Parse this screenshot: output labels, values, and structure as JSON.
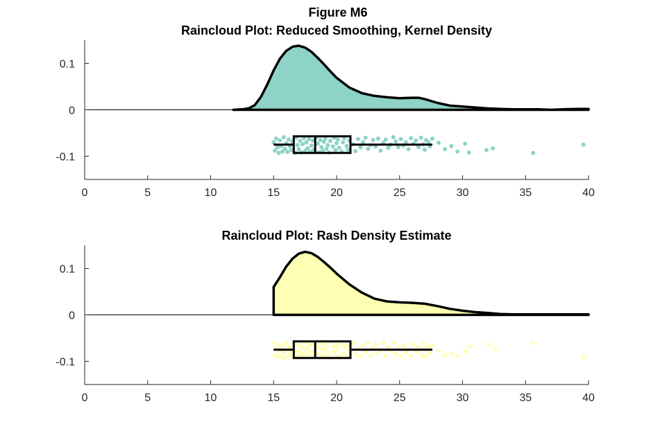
{
  "figure": {
    "title": "Figure M6"
  },
  "chart_data": [
    {
      "type": "raincloud",
      "title": "Raincloud Plot: Reduced Smoothing, Kernel Density",
      "xlim": [
        0,
        40
      ],
      "ylim": [
        -0.15,
        0.15
      ],
      "xticks": [
        "0",
        "5",
        "10",
        "15",
        "20",
        "25",
        "30",
        "35",
        "40"
      ],
      "yticks": [
        "0.1",
        "0",
        "-0.1"
      ],
      "fill_color": "#8dd3c7",
      "density": {
        "x": [
          11.8,
          12.5,
          13.0,
          13.5,
          14.0,
          14.5,
          15.0,
          15.5,
          16.0,
          16.5,
          17.0,
          17.5,
          18.0,
          18.5,
          19.0,
          19.5,
          20.0,
          21.0,
          22.0,
          23.0,
          24.0,
          25.0,
          26.0,
          26.5,
          27.0,
          28.0,
          29.0,
          30.0,
          31.0,
          32.0,
          33.0,
          34.0,
          35.0,
          36.0,
          37.0,
          38.0,
          39.0,
          40.0
        ],
        "y": [
          0.0,
          0.001,
          0.003,
          0.01,
          0.028,
          0.055,
          0.085,
          0.11,
          0.127,
          0.136,
          0.138,
          0.134,
          0.125,
          0.112,
          0.098,
          0.083,
          0.069,
          0.048,
          0.036,
          0.03,
          0.027,
          0.025,
          0.026,
          0.026,
          0.023,
          0.015,
          0.009,
          0.007,
          0.005,
          0.003,
          0.002,
          0.001,
          0.001,
          0.001,
          0.0,
          0.001,
          0.002,
          0.002
        ]
      },
      "box": {
        "whisker_low": 15.0,
        "q1": 16.6,
        "median": 18.3,
        "q3": 21.1,
        "whisker_high": 27.6,
        "y": -0.075
      },
      "points": [
        [
          15.0,
          -0.07
        ],
        [
          15.1,
          -0.088
        ],
        [
          15.2,
          -0.062
        ],
        [
          15.3,
          -0.081
        ],
        [
          15.4,
          -0.093
        ],
        [
          15.5,
          -0.066
        ],
        [
          15.6,
          -0.078
        ],
        [
          15.7,
          -0.09
        ],
        [
          15.8,
          -0.059
        ],
        [
          15.9,
          -0.084
        ],
        [
          16.0,
          -0.072
        ],
        [
          16.1,
          -0.091
        ],
        [
          16.2,
          -0.064
        ],
        [
          16.3,
          -0.079
        ],
        [
          16.4,
          -0.087
        ],
        [
          16.5,
          -0.068
        ],
        [
          16.7,
          -0.093
        ],
        [
          16.8,
          -0.06
        ],
        [
          16.9,
          -0.076
        ],
        [
          17.0,
          -0.085
        ],
        [
          17.1,
          -0.067
        ],
        [
          17.2,
          -0.092
        ],
        [
          17.3,
          -0.074
        ],
        [
          17.4,
          -0.061
        ],
        [
          17.5,
          -0.088
        ],
        [
          17.6,
          -0.07
        ],
        [
          17.7,
          -0.083
        ],
        [
          17.8,
          -0.063
        ],
        [
          17.9,
          -0.09
        ],
        [
          18.0,
          -0.077
        ],
        [
          18.1,
          -0.066
        ],
        [
          18.2,
          -0.086
        ],
        [
          18.4,
          -0.059
        ],
        [
          18.5,
          -0.073
        ],
        [
          18.6,
          -0.091
        ],
        [
          18.7,
          -0.065
        ],
        [
          18.8,
          -0.08
        ],
        [
          18.9,
          -0.088
        ],
        [
          19.0,
          -0.069
        ],
        [
          19.1,
          -0.062
        ],
        [
          19.2,
          -0.084
        ],
        [
          19.3,
          -0.076
        ],
        [
          19.4,
          -0.092
        ],
        [
          19.5,
          -0.067
        ],
        [
          19.7,
          -0.079
        ],
        [
          19.8,
          -0.06
        ],
        [
          19.9,
          -0.087
        ],
        [
          20.0,
          -0.072
        ],
        [
          20.1,
          -0.064
        ],
        [
          20.2,
          -0.082
        ],
        [
          20.4,
          -0.09
        ],
        [
          20.5,
          -0.07
        ],
        [
          20.6,
          -0.061
        ],
        [
          20.8,
          -0.078
        ],
        [
          20.9,
          -0.086
        ],
        [
          21.0,
          -0.066
        ],
        [
          21.3,
          -0.074
        ],
        [
          21.5,
          -0.089
        ],
        [
          21.7,
          -0.063
        ],
        [
          21.9,
          -0.081
        ],
        [
          22.1,
          -0.07
        ],
        [
          22.3,
          -0.06
        ],
        [
          22.5,
          -0.084
        ],
        [
          22.7,
          -0.076
        ],
        [
          22.9,
          -0.065
        ],
        [
          23.1,
          -0.079
        ],
        [
          23.3,
          -0.062
        ],
        [
          23.5,
          -0.088
        ],
        [
          23.7,
          -0.071
        ],
        [
          23.9,
          -0.064
        ],
        [
          24.1,
          -0.082
        ],
        [
          24.3,
          -0.075
        ],
        [
          24.5,
          -0.059
        ],
        [
          24.7,
          -0.068
        ],
        [
          24.9,
          -0.08
        ],
        [
          25.1,
          -0.063
        ],
        [
          25.3,
          -0.077
        ],
        [
          25.5,
          -0.07
        ],
        [
          25.7,
          -0.085
        ],
        [
          25.9,
          -0.061
        ],
        [
          26.1,
          -0.073
        ],
        [
          26.3,
          -0.066
        ],
        [
          26.5,
          -0.08
        ],
        [
          26.7,
          -0.06
        ],
        [
          26.9,
          -0.074
        ],
        [
          27.0,
          -0.086
        ],
        [
          27.1,
          -0.065
        ],
        [
          27.3,
          -0.07
        ],
        [
          27.4,
          -0.079
        ],
        [
          27.6,
          -0.062
        ],
        [
          28.1,
          -0.071
        ],
        [
          28.6,
          -0.085
        ],
        [
          29.1,
          -0.078
        ],
        [
          29.6,
          -0.09
        ],
        [
          30.2,
          -0.073
        ],
        [
          30.5,
          -0.092
        ],
        [
          31.9,
          -0.087
        ],
        [
          32.4,
          -0.083
        ],
        [
          35.6,
          -0.093
        ],
        [
          39.6,
          -0.075
        ]
      ]
    },
    {
      "type": "raincloud",
      "title": "Raincloud Plot: Rash Density Estimate",
      "xlim": [
        0,
        40
      ],
      "ylim": [
        -0.15,
        0.15
      ],
      "xticks": [
        "0",
        "5",
        "10",
        "15",
        "20",
        "25",
        "30",
        "35",
        "40"
      ],
      "yticks": [
        "0.1",
        "0",
        "-0.1"
      ],
      "fill_color": "#ffffb3",
      "density": {
        "x": [
          15.0,
          15.0,
          15.5,
          16.0,
          16.5,
          17.0,
          17.5,
          18.0,
          18.5,
          19.0,
          19.5,
          20.0,
          21.0,
          22.0,
          23.0,
          24.0,
          25.0,
          26.0,
          27.0,
          28.0,
          29.0,
          30.0,
          31.0,
          32.0,
          33.0,
          34.0,
          35.0,
          36.0,
          37.0,
          38.0,
          39.0,
          40.0
        ],
        "y": [
          0.0,
          0.06,
          0.081,
          0.104,
          0.121,
          0.132,
          0.136,
          0.133,
          0.125,
          0.114,
          0.102,
          0.089,
          0.066,
          0.048,
          0.035,
          0.029,
          0.027,
          0.026,
          0.024,
          0.019,
          0.013,
          0.009,
          0.006,
          0.004,
          0.002,
          0.001,
          0.001,
          0.001,
          0.001,
          0.001,
          0.001,
          0.001
        ]
      },
      "box": {
        "whisker_low": 15.0,
        "q1": 16.6,
        "median": 18.3,
        "q3": 21.1,
        "whisker_high": 27.6,
        "y": -0.075
      },
      "points": [
        [
          15.0,
          -0.06
        ],
        [
          15.1,
          -0.086
        ],
        [
          15.2,
          -0.072
        ],
        [
          15.3,
          -0.091
        ],
        [
          15.4,
          -0.064
        ],
        [
          15.5,
          -0.078
        ],
        [
          15.6,
          -0.089
        ],
        [
          15.7,
          -0.067
        ],
        [
          15.8,
          -0.081
        ],
        [
          15.9,
          -0.093
        ],
        [
          16.0,
          -0.061
        ],
        [
          16.1,
          -0.075
        ],
        [
          16.2,
          -0.087
        ],
        [
          16.3,
          -0.069
        ],
        [
          16.4,
          -0.082
        ],
        [
          16.5,
          -0.092
        ],
        [
          16.7,
          -0.063
        ],
        [
          16.8,
          -0.077
        ],
        [
          16.9,
          -0.088
        ],
        [
          17.0,
          -0.065
        ],
        [
          17.1,
          -0.08
        ],
        [
          17.2,
          -0.091
        ],
        [
          17.3,
          -0.07
        ],
        [
          17.4,
          -0.085
        ],
        [
          17.5,
          -0.06
        ],
        [
          17.6,
          -0.074
        ],
        [
          17.7,
          -0.09
        ],
        [
          17.8,
          -0.068
        ],
        [
          17.9,
          -0.083
        ],
        [
          18.0,
          -0.062
        ],
        [
          18.1,
          -0.079
        ],
        [
          18.2,
          -0.092
        ],
        [
          18.4,
          -0.066
        ],
        [
          18.5,
          -0.084
        ],
        [
          18.6,
          -0.071
        ],
        [
          18.7,
          -0.059
        ],
        [
          18.8,
          -0.087
        ],
        [
          18.9,
          -0.076
        ],
        [
          19.0,
          -0.064
        ],
        [
          19.1,
          -0.089
        ],
        [
          19.2,
          -0.072
        ],
        [
          19.3,
          -0.081
        ],
        [
          19.4,
          -0.06
        ],
        [
          19.5,
          -0.093
        ],
        [
          19.7,
          -0.068
        ],
        [
          19.8,
          -0.079
        ],
        [
          19.9,
          -0.086
        ],
        [
          20.0,
          -0.065
        ],
        [
          20.1,
          -0.074
        ],
        [
          20.2,
          -0.091
        ],
        [
          20.4,
          -0.062
        ],
        [
          20.5,
          -0.083
        ],
        [
          20.6,
          -0.07
        ],
        [
          20.8,
          -0.088
        ],
        [
          20.9,
          -0.066
        ],
        [
          21.0,
          -0.077
        ],
        [
          21.3,
          -0.061
        ],
        [
          21.5,
          -0.085
        ],
        [
          21.7,
          -0.073
        ],
        [
          21.9,
          -0.09
        ],
        [
          22.1,
          -0.066
        ],
        [
          22.3,
          -0.08
        ],
        [
          22.5,
          -0.06
        ],
        [
          22.7,
          -0.087
        ],
        [
          22.9,
          -0.072
        ],
        [
          23.1,
          -0.064
        ],
        [
          23.3,
          -0.082
        ],
        [
          23.5,
          -0.075
        ],
        [
          23.7,
          -0.061
        ],
        [
          23.9,
          -0.089
        ],
        [
          24.1,
          -0.069
        ],
        [
          24.3,
          -0.078
        ],
        [
          24.5,
          -0.06
        ],
        [
          24.7,
          -0.084
        ],
        [
          24.9,
          -0.071
        ],
        [
          25.1,
          -0.09
        ],
        [
          25.3,
          -0.066
        ],
        [
          25.5,
          -0.081
        ],
        [
          25.7,
          -0.074
        ],
        [
          25.9,
          -0.088
        ],
        [
          26.1,
          -0.064
        ],
        [
          26.3,
          -0.079
        ],
        [
          26.5,
          -0.07
        ],
        [
          26.7,
          -0.086
        ],
        [
          26.9,
          -0.062
        ],
        [
          27.0,
          -0.091
        ],
        [
          27.1,
          -0.075
        ],
        [
          27.3,
          -0.068
        ],
        [
          27.4,
          -0.083
        ],
        [
          27.6,
          -0.065
        ],
        [
          28.1,
          -0.078
        ],
        [
          28.6,
          -0.087
        ],
        [
          29.1,
          -0.084
        ],
        [
          29.6,
          -0.089
        ],
        [
          30.2,
          -0.079
        ],
        [
          30.6,
          -0.068
        ],
        [
          32.1,
          -0.064
        ],
        [
          32.6,
          -0.074
        ],
        [
          35.6,
          -0.061
        ],
        [
          39.6,
          -0.091
        ]
      ]
    }
  ]
}
